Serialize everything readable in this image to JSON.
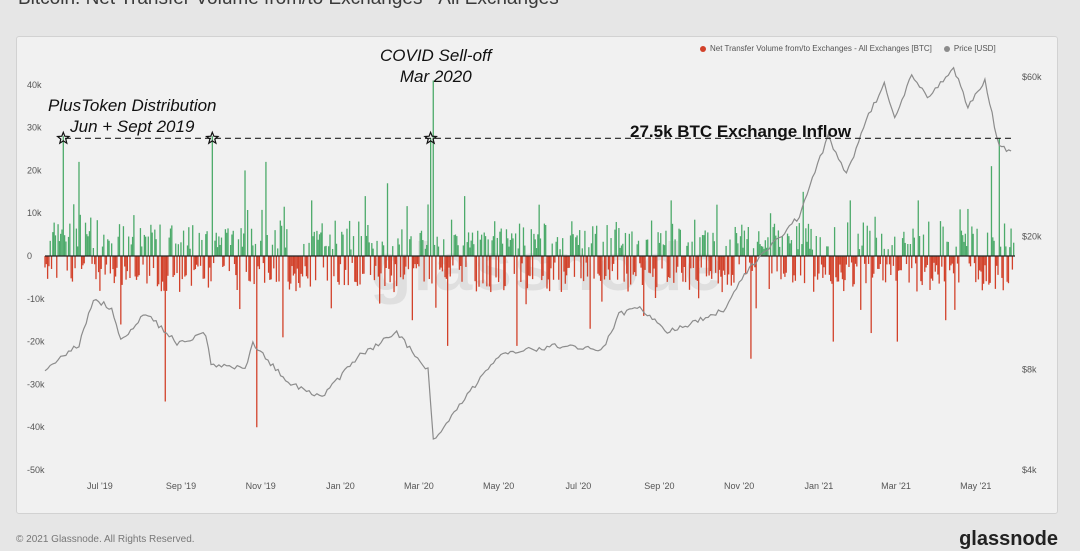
{
  "title": "Bitcoin: Net Transfer Volume from/to Exchanges - All Exchanges",
  "footer_copyright": "© 2021 Glassnode. All Rights Reserved.",
  "brand": "glassnode",
  "watermark": "glassnode",
  "colors": {
    "inflow": "#4caa6a",
    "outflow": "#d2412a",
    "price": "#8c8c8c",
    "background": "#f1f1f1"
  },
  "chart_data": {
    "type": "bar",
    "title": "Bitcoin: Net Transfer Volume from/to Exchanges - All Exchanges",
    "legend": [
      "Net Transfer Volume from/to Exchanges - All Exchanges [BTC]",
      "Price [USD]"
    ],
    "legend_position": "top-right",
    "x_tick_labels": [
      "Jul '19",
      "Sep '19",
      "Nov '19",
      "Jan '20",
      "Mar '20",
      "May '20",
      "Jul '20",
      "Sep '20",
      "Nov '20",
      "Jan '21",
      "Mar '21",
      "May '21"
    ],
    "y_left_tick_labels": [
      "40k",
      "30k",
      "20k",
      "10k",
      "0",
      "-10k",
      "-20k",
      "-30k",
      "-40k",
      "-50k"
    ],
    "y_left_ticks": [
      40000,
      30000,
      20000,
      10000,
      0,
      -10000,
      -20000,
      -30000,
      -40000,
      -50000
    ],
    "ylim": [
      -50000,
      43000
    ],
    "y_right_tick_labels": [
      "$60k",
      "$20k",
      "$8k",
      "$4k"
    ],
    "y_right_ticks": [
      60000,
      20000,
      8000,
      4000
    ],
    "y_right_scale": "log",
    "y_right_lim": [
      4000,
      62000
    ],
    "x_range": [
      "2019-05-20",
      "2021-05-31"
    ],
    "reference_line": 27500,
    "series": [
      {
        "name": "Net Transfer Volume from/to Exchanges - All Exchanges [BTC]",
        "key_points": [
          {
            "x": "2019-06-03",
            "y": 28000
          },
          {
            "x": "2019-06-15",
            "y": 22000
          },
          {
            "x": "2019-07-17",
            "y": -16000
          },
          {
            "x": "2019-08-20",
            "y": -34000
          },
          {
            "x": "2019-09-25",
            "y": 28000
          },
          {
            "x": "2019-10-20",
            "y": 20000
          },
          {
            "x": "2019-10-29",
            "y": -40000
          },
          {
            "x": "2019-11-05",
            "y": 22000
          },
          {
            "x": "2019-11-18",
            "y": -19000
          },
          {
            "x": "2019-12-10",
            "y": 13000
          },
          {
            "x": "2020-01-20",
            "y": 14000
          },
          {
            "x": "2020-02-06",
            "y": 17000
          },
          {
            "x": "2020-02-25",
            "y": -15000
          },
          {
            "x": "2020-03-10",
            "y": 27500
          },
          {
            "x": "2020-03-12",
            "y": 41000
          },
          {
            "x": "2020-03-23",
            "y": -21000
          },
          {
            "x": "2020-04-05",
            "y": 14000
          },
          {
            "x": "2020-05-15",
            "y": -21000
          },
          {
            "x": "2020-06-01",
            "y": 12000
          },
          {
            "x": "2020-07-10",
            "y": -17000
          },
          {
            "x": "2020-08-20",
            "y": -14000
          },
          {
            "x": "2020-09-10",
            "y": 13000
          },
          {
            "x": "2020-10-15",
            "y": 12000
          },
          {
            "x": "2020-11-10",
            "y": -24000
          },
          {
            "x": "2020-11-25",
            "y": 10000
          },
          {
            "x": "2020-12-20",
            "y": 15000
          },
          {
            "x": "2021-01-12",
            "y": -20000
          },
          {
            "x": "2021-01-25",
            "y": 13000
          },
          {
            "x": "2021-02-10",
            "y": -18000
          },
          {
            "x": "2021-03-02",
            "y": -20000
          },
          {
            "x": "2021-03-18",
            "y": 13000
          },
          {
            "x": "2021-04-08",
            "y": -15000
          },
          {
            "x": "2021-04-25",
            "y": 11000
          },
          {
            "x": "2021-05-13",
            "y": 21000
          },
          {
            "x": "2021-05-19",
            "y": 27500
          },
          {
            "x": "2021-05-22",
            "y": -8000
          }
        ]
      },
      {
        "name": "Price [USD]",
        "points": [
          {
            "x": "2019-05-20",
            "y": 8000
          },
          {
            "x": "2019-06-15",
            "y": 9500
          },
          {
            "x": "2019-06-26",
            "y": 13000
          },
          {
            "x": "2019-07-10",
            "y": 12200
          },
          {
            "x": "2019-07-17",
            "y": 9800
          },
          {
            "x": "2019-08-05",
            "y": 11800
          },
          {
            "x": "2019-08-29",
            "y": 9600
          },
          {
            "x": "2019-09-20",
            "y": 10200
          },
          {
            "x": "2019-09-24",
            "y": 8300
          },
          {
            "x": "2019-10-20",
            "y": 8100
          },
          {
            "x": "2019-10-26",
            "y": 9500
          },
          {
            "x": "2019-11-22",
            "y": 7300
          },
          {
            "x": "2019-12-18",
            "y": 6600
          },
          {
            "x": "2020-01-14",
            "y": 8700
          },
          {
            "x": "2020-02-13",
            "y": 10300
          },
          {
            "x": "2020-03-08",
            "y": 8000
          },
          {
            "x": "2020-03-12",
            "y": 5000
          },
          {
            "x": "2020-03-16",
            "y": 5100
          },
          {
            "x": "2020-04-29",
            "y": 8700
          },
          {
            "x": "2020-05-10",
            "y": 9000
          },
          {
            "x": "2020-06-15",
            "y": 9400
          },
          {
            "x": "2020-07-20",
            "y": 9200
          },
          {
            "x": "2020-08-01",
            "y": 11700
          },
          {
            "x": "2020-08-17",
            "y": 12200
          },
          {
            "x": "2020-09-07",
            "y": 10300
          },
          {
            "x": "2020-10-20",
            "y": 12000
          },
          {
            "x": "2020-11-05",
            "y": 15500
          },
          {
            "x": "2020-11-30",
            "y": 19500
          },
          {
            "x": "2020-12-17",
            "y": 23000
          },
          {
            "x": "2021-01-08",
            "y": 40000
          },
          {
            "x": "2021-01-22",
            "y": 30500
          },
          {
            "x": "2021-02-08",
            "y": 46000
          },
          {
            "x": "2021-02-20",
            "y": 57000
          },
          {
            "x": "2021-02-28",
            "y": 45000
          },
          {
            "x": "2021-03-13",
            "y": 61000
          },
          {
            "x": "2021-03-25",
            "y": 52000
          },
          {
            "x": "2021-04-14",
            "y": 63500
          },
          {
            "x": "2021-04-25",
            "y": 49000
          },
          {
            "x": "2021-05-08",
            "y": 58000
          },
          {
            "x": "2021-05-19",
            "y": 37000
          },
          {
            "x": "2021-05-28",
            "y": 36000
          }
        ]
      }
    ],
    "annotations": [
      {
        "text": "PlusToken Distribution",
        "text2": "Jun + Sept 2019"
      },
      {
        "text": "COVID Sell-off",
        "text2": "Mar 2020"
      },
      {
        "text": "27.5k BTC Exchange Inflow"
      }
    ]
  }
}
